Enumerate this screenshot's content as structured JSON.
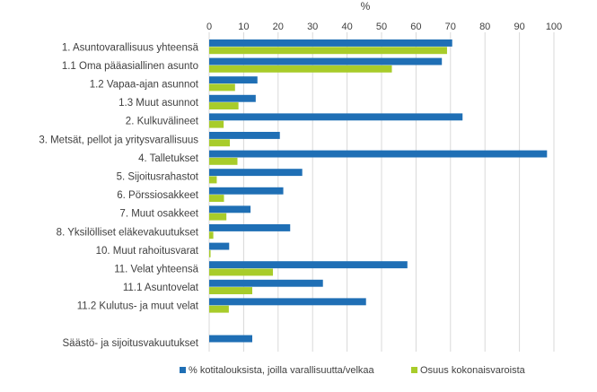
{
  "chart_data": {
    "type": "bar",
    "orientation": "horizontal",
    "axis_title": "%",
    "xlim": [
      0,
      100
    ],
    "xticks": [
      0,
      10,
      20,
      30,
      40,
      50,
      60,
      70,
      80,
      90,
      100
    ],
    "grid": true,
    "legend_position": "bottom",
    "categories": [
      "1. Asuntovarallisuus yhteensä",
      "1.1 Oma pääasiallinen asunto",
      "1.2 Vapaa-ajan asunnot",
      "1.3 Muut asunnot",
      "2. Kulkuvälineet",
      "3. Metsät, pellot ja yritysvarallisuus",
      "4. Talletukset",
      "5. Sijoitusrahastot",
      "6. Pörssiosakkeet",
      "7. Muut osakkeet",
      "8. Yksilölliset eläkevakuutukset",
      "10. Muut rahoitusvarat",
      "11. Velat yhteensä",
      "11.1 Asuntovelat",
      "11.2 Kulutus- ja muut velat",
      "",
      "Säästö- ja sijoitusvakuutukset"
    ],
    "series": [
      {
        "name": "% kotitalouksista, joilla varallisuutta/velkaa",
        "color": "#1F6FB5",
        "values": [
          70.5,
          67.5,
          14,
          13.5,
          73.5,
          20.5,
          98,
          27,
          21.5,
          12,
          23.5,
          5.8,
          57.5,
          33,
          45.5,
          null,
          12.5
        ]
      },
      {
        "name": "Osuus kokonaisvaroista",
        "color": "#A8CC2A",
        "values": [
          69,
          53,
          7.5,
          8.5,
          4.2,
          6,
          8.2,
          2.2,
          4.3,
          5,
          1.2,
          0.4,
          18.5,
          12.5,
          5.7,
          null,
          null
        ]
      }
    ]
  }
}
